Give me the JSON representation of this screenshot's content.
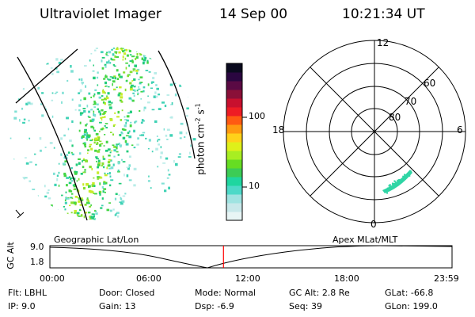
{
  "header": {
    "instrument": "Ultraviolet Imager",
    "date": "14 Sep 00",
    "time": "10:21:34 UT"
  },
  "colorbar": {
    "label": "photon cm",
    "label_sup1": "-2",
    "label_mid": "s",
    "label_sup2": "-1",
    "scale": "log",
    "range": [
      2,
      500
    ],
    "ticks": [
      "100",
      "10"
    ],
    "colors": [
      "#e8f5f5",
      "#c8e8ea",
      "#9fe3e1",
      "#4dd9c8",
      "#1fd6a0",
      "#3ccc55",
      "#66dd22",
      "#a8ee22",
      "#dff01a",
      "#ffd21a",
      "#ff9a10",
      "#ff5a12",
      "#ee1c24",
      "#c8102e",
      "#8a1038",
      "#5a0a44",
      "#2a0640",
      "#0a0a1e"
    ]
  },
  "polar_plot": {
    "mlt_labels": [
      "12",
      "18",
      "6",
      "0"
    ],
    "lat_labels": [
      "60",
      "70",
      "80"
    ],
    "aurora_color": "#2fd5a5"
  },
  "timeline": {
    "ylabel": "GC Alt",
    "yticks": [
      "9.0",
      "1.8"
    ],
    "left_title": "Geographic Lat/Lon",
    "right_title": "Apex  MLat/MLT",
    "xticks": [
      "00:00",
      "06:00",
      "12:00",
      "18:00",
      "23:59"
    ],
    "marker_time_hours": 10.36,
    "marker_color": "#ff0000"
  },
  "info": {
    "row1": [
      {
        "label": "Flt:",
        "value": "LBHL"
      },
      {
        "label": "Door:",
        "value": "Closed"
      },
      {
        "label": "Mode:",
        "value": "Normal"
      },
      {
        "label": "GC Alt:",
        "value": "2.8 Re"
      },
      {
        "label": "GLat:",
        "value": "-66.8"
      }
    ],
    "row2": [
      {
        "label": "IP:",
        "value": "9.0"
      },
      {
        "label": "Gain:",
        "value": "13"
      },
      {
        "label": "Dsp:",
        "value": "-6.9"
      },
      {
        "label": "Seq:",
        "value": "39"
      },
      {
        "label": "GLon:",
        "value": "199.0"
      }
    ]
  }
}
